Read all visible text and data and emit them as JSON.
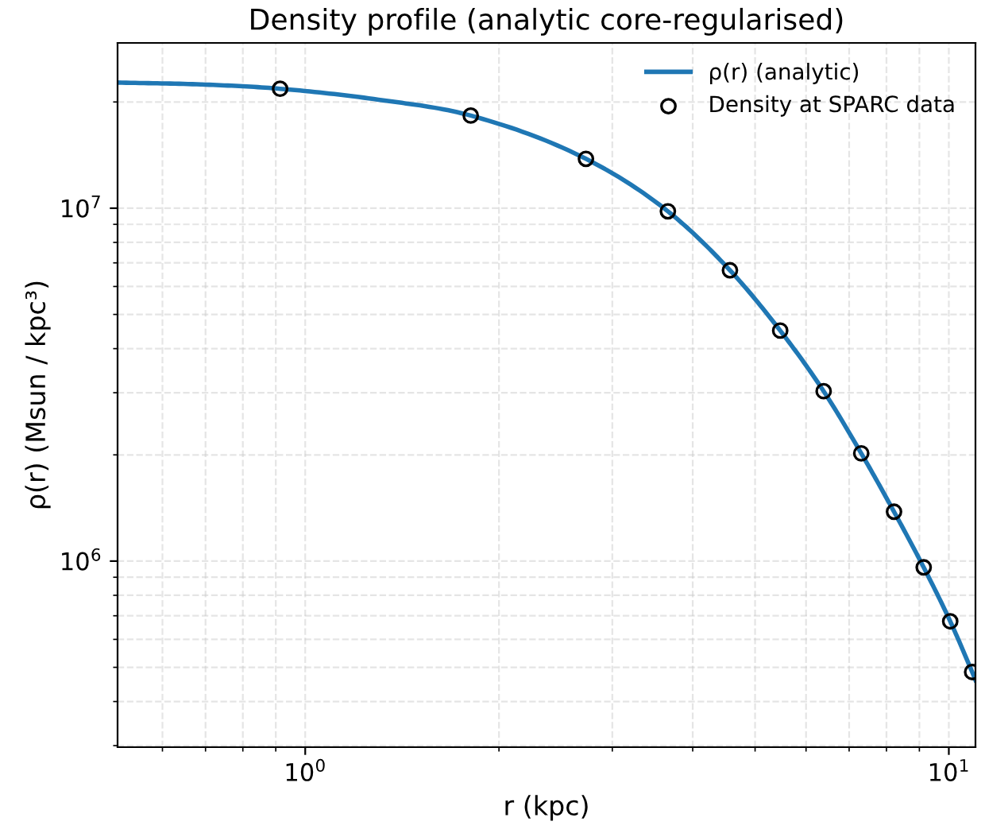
{
  "chart_data": {
    "type": "line",
    "title": "Density profile (analytic core-regularised)",
    "xlabel": "r (kpc)",
    "ylabel": "ρ(r) (Msun / kpc³)",
    "log": "xy",
    "grid": true,
    "legend": "top right",
    "xlim": [
      0.511,
      11.0
    ],
    "ylim": [
      297000,
      29400000
    ],
    "xticks": [
      {
        "value": 0.6,
        "label": null
      },
      {
        "value": 0.7,
        "label": null
      },
      {
        "value": 0.8,
        "label": null
      },
      {
        "value": 0.9,
        "label": null
      },
      {
        "value": 1,
        "label": "10$^{0}$"
      },
      {
        "value": 2,
        "label": null
      },
      {
        "value": 3,
        "label": null
      },
      {
        "value": 4,
        "label": null
      },
      {
        "value": 5,
        "label": null
      },
      {
        "value": 6,
        "label": null
      },
      {
        "value": 7,
        "label": null
      },
      {
        "value": 8,
        "label": null
      },
      {
        "value": 9,
        "label": null
      },
      {
        "value": 10,
        "label": "10$^{1}$"
      }
    ],
    "yticks": [
      {
        "value": 300000,
        "label": null
      },
      {
        "value": 400000,
        "label": null
      },
      {
        "value": 500000,
        "label": null
      },
      {
        "value": 600000,
        "label": null
      },
      {
        "value": 700000,
        "label": null
      },
      {
        "value": 800000,
        "label": null
      },
      {
        "value": 900000,
        "label": null
      },
      {
        "value": 1000000,
        "label": "10$^{6}$"
      },
      {
        "value": 2000000,
        "label": null
      },
      {
        "value": 3000000,
        "label": null
      },
      {
        "value": 4000000,
        "label": null
      },
      {
        "value": 5000000,
        "label": null
      },
      {
        "value": 6000000,
        "label": null
      },
      {
        "value": 7000000,
        "label": null
      },
      {
        "value": 8000000,
        "label": null
      },
      {
        "value": 9000000,
        "label": null
      },
      {
        "value": 10000000,
        "label": "10$^{7}$"
      },
      {
        "value": 20000000,
        "label": null
      }
    ],
    "series": [
      {
        "name": "ρ(r) (analytic)",
        "color": "#1f77b4",
        "line_style": "solid",
        "marker": "none",
        "x": [
          0.511,
          0.7,
          0.914,
          1.3,
          1.808,
          2.73,
          3.66,
          4.57,
          5.47,
          6.39,
          7.31,
          8.22,
          9.14,
          10.05,
          10.87,
          11.0
        ],
        "values": [
          22700000,
          22400000,
          21800000,
          20300000,
          18300000,
          13800000,
          9800000,
          6670000,
          4500000,
          3030000,
          2020000,
          1380000,
          960000,
          675000,
          485000,
          460000
        ]
      },
      {
        "name": "Density at SPARC data",
        "type": "scatter",
        "color": "#000000",
        "marker": "circle",
        "x": [
          0.914,
          1.808,
          2.73,
          3.66,
          4.57,
          5.47,
          6.39,
          7.31,
          8.22,
          9.14,
          10.05,
          10.87
        ],
        "values": [
          21800000,
          18300000,
          13800000,
          9800000,
          6670000,
          4500000,
          3030000,
          2020000,
          1380000,
          960000,
          675000,
          485000
        ]
      }
    ]
  }
}
